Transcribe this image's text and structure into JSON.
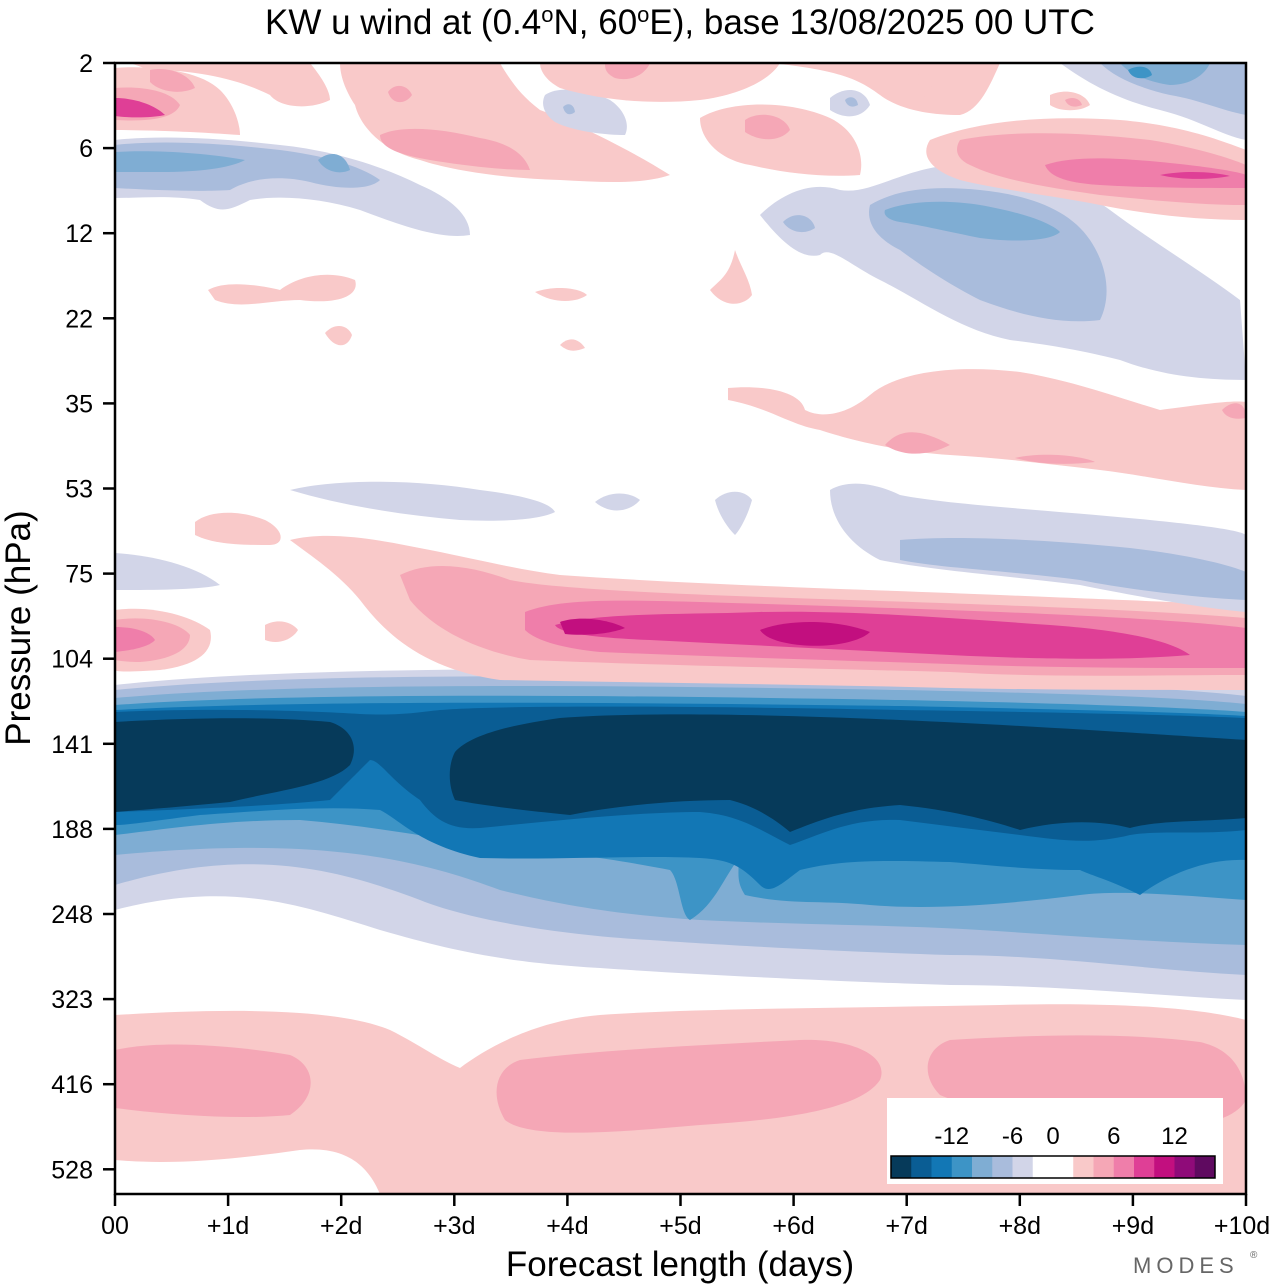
{
  "chart_data": {
    "type": "heatmap",
    "title": "KW u wind at (0.4°N, 60°E),  base 13/08/2025  00 UTC",
    "title_parts": {
      "prefix": "KW u wind at (0.4",
      "deg1": "o",
      "mid": "N, 60",
      "deg2": "o",
      "suffix": "E),  base 13/08/2025  00 UTC"
    },
    "xlabel": "Forecast length (days)",
    "ylabel": "Pressure (hPa)",
    "x_ticks": [
      "00",
      "+1d",
      "+2d",
      "+3d",
      "+4d",
      "+5d",
      "+6d",
      "+7d",
      "+8d",
      "+9d",
      "+10d"
    ],
    "x_range_days": [
      0,
      10
    ],
    "y_ticks": [
      "2",
      "6",
      "12",
      "22",
      "35",
      "53",
      "75",
      "104",
      "141",
      "188",
      "248",
      "323",
      "416",
      "528"
    ],
    "y_scale": "log-pressure, top 2 hPa to bottom ~650 hPa",
    "colorbar": {
      "labels": [
        "-12",
        "-6",
        "0",
        "6",
        "12"
      ],
      "levels": [
        -16,
        -14,
        -12,
        -10,
        -8,
        -6,
        -4,
        -2,
        2,
        4,
        6,
        8,
        10,
        12,
        14,
        16
      ],
      "colors": [
        "#063a5a",
        "#0a5d94",
        "#1277b5",
        "#3d94c6",
        "#7fadd3",
        "#a9bcdc",
        "#d2d5e8",
        "#ffffff",
        "#ffffff",
        "#f9c9c9",
        "#f5a7b6",
        "#ef7eaa",
        "#df3f96",
        "#c20f7f",
        "#8f0b79",
        "#5f0a60"
      ]
    },
    "features": [
      {
        "name": "strong-easterly-core",
        "value": -16,
        "pressure_hpa": [
          125,
          175
        ],
        "days": [
          0,
          10
        ]
      },
      {
        "name": "upper-easterly-shear-zone",
        "value": -10,
        "pressure_hpa": [
          175,
          300
        ],
        "days": [
          0,
          10
        ]
      },
      {
        "name": "westerly-jet-100hPa",
        "value": 14,
        "pressure_hpa": [
          85,
          110
        ],
        "days": [
          4,
          10
        ]
      },
      {
        "name": "lower-westerly-band",
        "value": 4,
        "pressure_hpa": [
          360,
          600
        ],
        "days": [
          0,
          10
        ]
      },
      {
        "name": "stratospheric-westerly-8hPa",
        "value": 10,
        "pressure_hpa": [
          6,
          10
        ],
        "days": [
          7,
          10
        ]
      },
      {
        "name": "stratospheric-easterly-15hPa",
        "value": -8,
        "pressure_hpa": [
          9,
          25
        ],
        "days": [
          6.5,
          9
        ]
      }
    ]
  },
  "branding": {
    "label": "MODES"
  },
  "colors": {
    "axis": "#000000",
    "background": "#ffffff"
  }
}
